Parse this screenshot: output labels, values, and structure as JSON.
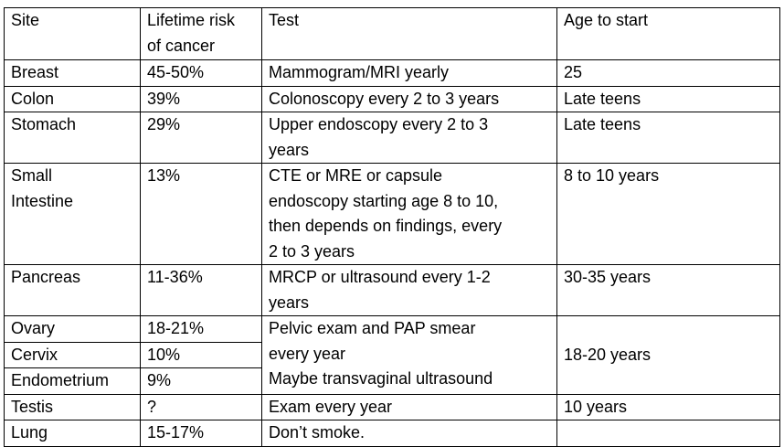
{
  "table": {
    "headers": {
      "site": "Site",
      "risk_line1": "Lifetime risk",
      "risk_line2": "of cancer",
      "test": "Test",
      "age": "Age to start"
    },
    "rows": [
      {
        "site": "Breast",
        "risk": "45-50%",
        "test": "Mammogram/MRI yearly",
        "age": "25"
      },
      {
        "site": "Colon",
        "risk": "39%",
        "test": "Colonoscopy every 2 to 3 years",
        "age": "Late teens"
      },
      {
        "site": "Stomach",
        "risk": "29%",
        "test_lines": [
          "Upper endoscopy every 2 to 3",
          "years"
        ],
        "age": "Late teens"
      },
      {
        "site_lines": [
          "Small",
          "Intestine"
        ],
        "risk": "13%",
        "test_lines": [
          "CTE or MRE or capsule",
          "endoscopy starting age 8 to 10,",
          "then depends on findings, every",
          "2 to 3 years"
        ],
        "age": "8 to 10 years"
      },
      {
        "site": "Pancreas",
        "risk": "11-36%",
        "test_lines": [
          "MRCP or ultrasound every 1-2",
          "years"
        ],
        "age": "30-35 years"
      },
      {
        "site": "Ovary",
        "risk": "18-21%"
      },
      {
        "site": "Cervix",
        "risk": "10%"
      },
      {
        "site": "Endometrium",
        "risk": "9%"
      },
      {
        "site": "Testis",
        "risk": "?",
        "test": "Exam every year",
        "age": "10 years"
      },
      {
        "site": "Lung",
        "risk": "15-17%",
        "test": "Don’t smoke.",
        "age": ""
      }
    ],
    "gyn_group": {
      "test_lines": [
        "Pelvic exam and PAP smear",
        "every year",
        "Maybe transvaginal ultrasound"
      ],
      "age": "18-20 years"
    }
  }
}
